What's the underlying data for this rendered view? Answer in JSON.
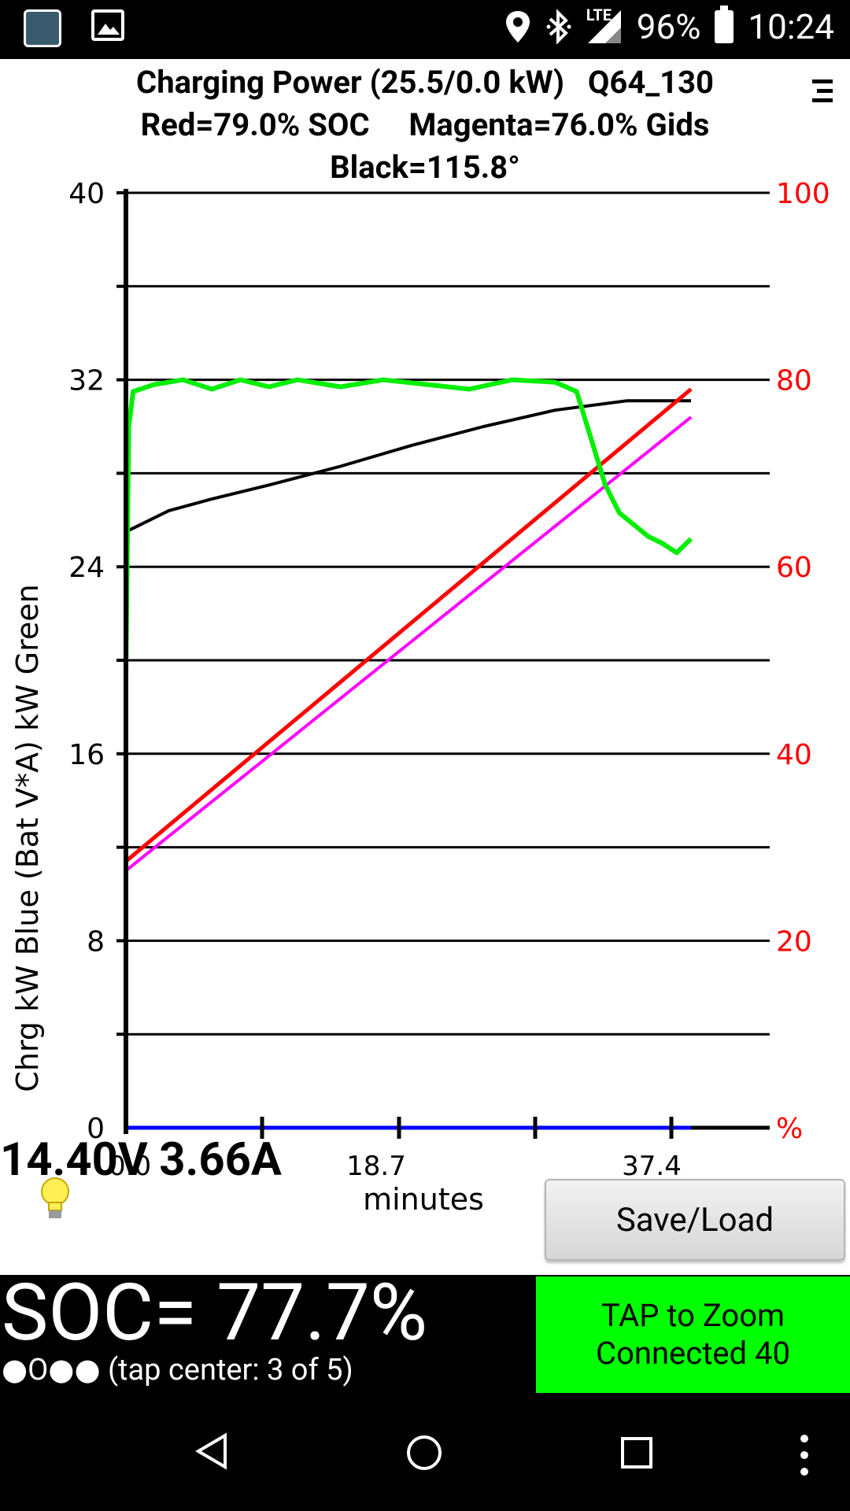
{
  "status_bar": {
    "battery_percent": "96%",
    "time": "10:24",
    "network_label": "LTE",
    "icons": [
      "app-icon",
      "image-icon",
      "location-icon",
      "bluetooth-icon",
      "signal-icon",
      "battery-icon"
    ]
  },
  "header": {
    "title_line1": "Charging Power (25.5/0.0 kW)   Q64_130",
    "title_line2": "Red=79.0% SOC     Magenta=76.0% Gids",
    "title_line3": "Black=115.8°",
    "menu_icon": "menu-icon"
  },
  "chart_data": {
    "type": "line",
    "ylabel": "Chrg kW Blue  (Bat V*A) kW Green",
    "xlabel": "minutes",
    "xlim": [
      0,
      45
    ],
    "ylim_left": [
      0,
      40
    ],
    "ylim_right": [
      0,
      100
    ],
    "x_ticks": [
      "0.0",
      "18.7",
      "37.4"
    ],
    "left_ticks": [
      "0",
      "8",
      "16",
      "24",
      "32",
      "40"
    ],
    "right_ticks": [
      "%",
      "20",
      "40",
      "60",
      "80",
      "100"
    ],
    "colors": {
      "green": "#00ee00",
      "black": "#000000",
      "red": "#ff0000",
      "magenta": "#ff00ff",
      "blue": "#0000ff",
      "right_axis": "#ff0000"
    },
    "series": [
      {
        "name": "Green",
        "x": [
          0,
          0.2,
          0.5,
          2,
          4,
          6,
          8,
          10,
          12,
          15,
          18,
          21,
          24,
          27,
          30,
          31.5,
          32.5,
          33.5,
          34.5,
          35.5,
          36.5,
          37.5,
          38.5,
          39.5
        ],
        "y": [
          19.5,
          30,
          31.5,
          31.8,
          32.0,
          31.6,
          32.0,
          31.7,
          32.0,
          31.7,
          32.0,
          31.8,
          31.6,
          32.0,
          31.9,
          31.5,
          29.5,
          27.5,
          26.3,
          25.8,
          25.3,
          25.0,
          24.6,
          25.2
        ]
      },
      {
        "name": "Black",
        "x": [
          0,
          3,
          6,
          10,
          15,
          20,
          25,
          30,
          35,
          39.5
        ],
        "y": [
          25.5,
          26.4,
          26.9,
          27.5,
          28.3,
          29.2,
          30.0,
          30.7,
          31.1,
          31.1
        ]
      },
      {
        "name": "Red",
        "x": [
          0,
          39.5
        ],
        "y": [
          28.5,
          79.0
        ]
      },
      {
        "name": "Magenta",
        "x": [
          0,
          39.5
        ],
        "y": [
          27.5,
          76.0
        ]
      },
      {
        "name": "Blue",
        "x": [
          0,
          39.5
        ],
        "y": [
          0,
          0
        ]
      }
    ]
  },
  "readout": {
    "voltage_current": "14.40V 3.66A",
    "bulb_icon": "lightbulb-icon"
  },
  "save_load_label": "Save/Load",
  "soc": {
    "value": "SOC= 77.7%",
    "tap_center": "●O●● (tap center: 3 of 5)"
  },
  "zoom_button": {
    "line1": "TAP to Zoom",
    "line2": "Connected 40",
    "color": "#00ff00"
  },
  "nav": {
    "back": "back-icon",
    "home": "home-icon",
    "recents": "recents-icon",
    "overflow": "overflow-icon"
  }
}
